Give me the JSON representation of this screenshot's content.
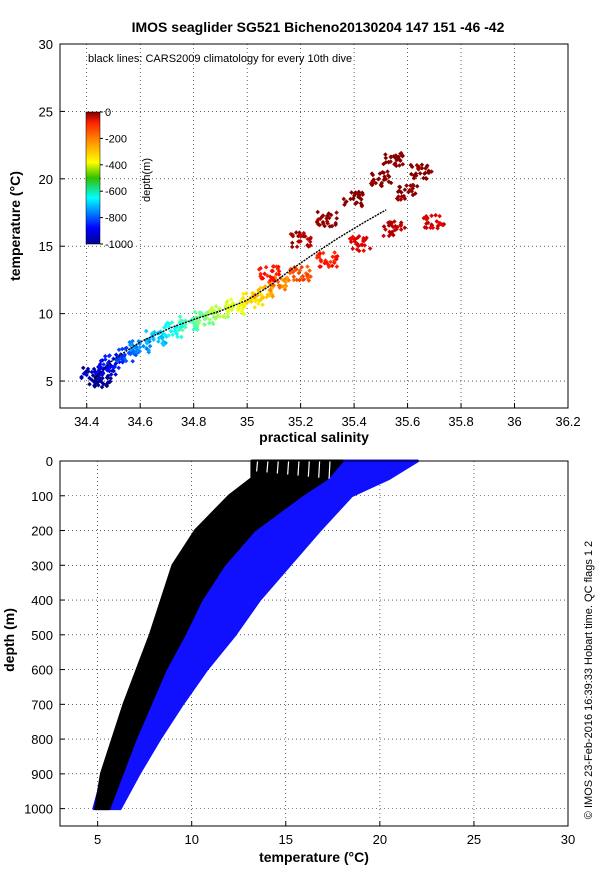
{
  "chart_data": [
    {
      "type": "scatter",
      "title": "IMOS seaglider SG521 Bicheno20130204 147  151  -46  -42",
      "annotation": "black lines: CARS2009 climatology for every 10th dive",
      "xlabel": "practical salinity",
      "ylabel": "temperature (°C)",
      "xlim": [
        34.3,
        36.2
      ],
      "ylim": [
        3,
        30
      ],
      "xticks": [
        "34.4",
        "34.6",
        "34.8",
        "35",
        "35.2",
        "35.4",
        "35.6",
        "35.8",
        "36",
        "36.2"
      ],
      "yticks": [
        "5",
        "10",
        "15",
        "20",
        "25",
        "30"
      ],
      "grid": true,
      "colorbar": {
        "label": "depth(m)",
        "ticks": [
          "0",
          "-200",
          "-400",
          "-600",
          "-800",
          "-1000"
        ],
        "range": [
          -1000,
          0
        ],
        "colormap": "jet"
      },
      "series": [
        {
          "kind": "glider observations (colored by depth)",
          "points": [
            [
              34.45,
              5.0,
              -990
            ],
            [
              34.42,
              5.5,
              -950
            ],
            [
              34.47,
              6.0,
              -900
            ],
            [
              34.5,
              6.5,
              -850
            ],
            [
              34.55,
              7.0,
              -800
            ],
            [
              34.6,
              7.6,
              -740
            ],
            [
              34.66,
              8.2,
              -680
            ],
            [
              34.72,
              8.8,
              -620
            ],
            [
              34.78,
              9.3,
              -560
            ],
            [
              34.84,
              9.7,
              -500
            ],
            [
              34.9,
              10.1,
              -450
            ],
            [
              34.96,
              10.5,
              -400
            ],
            [
              35.02,
              11.0,
              -350
            ],
            [
              35.06,
              11.5,
              -300
            ],
            [
              35.12,
              12.2,
              -250
            ],
            [
              35.2,
              13.0,
              -200
            ],
            [
              35.3,
              14.0,
              -150
            ],
            [
              35.42,
              15.2,
              -100
            ],
            [
              35.55,
              16.3,
              -60
            ],
            [
              35.7,
              16.8,
              -80
            ],
            [
              35.08,
              13.0,
              -140
            ],
            [
              35.2,
              15.5,
              -40
            ],
            [
              35.3,
              17.0,
              -20
            ],
            [
              35.4,
              18.5,
              -10
            ],
            [
              35.5,
              20.0,
              -5
            ],
            [
              35.55,
              21.5,
              -2
            ],
            [
              35.65,
              20.5,
              -5
            ],
            [
              35.6,
              19.0,
              -15
            ]
          ]
        },
        {
          "kind": "CARS2009 climatology",
          "color": "#000000",
          "points": [
            [
              34.42,
              5.0
            ],
            [
              34.5,
              6.6
            ],
            [
              34.6,
              7.9
            ],
            [
              34.72,
              9.0
            ],
            [
              34.82,
              9.7
            ],
            [
              34.9,
              10.2
            ],
            [
              35.0,
              11.0
            ],
            [
              35.08,
              12.0
            ],
            [
              35.16,
              13.2
            ],
            [
              35.24,
              14.3
            ],
            [
              35.34,
              15.6
            ],
            [
              35.44,
              16.8
            ],
            [
              35.52,
              17.7
            ]
          ]
        }
      ]
    },
    {
      "type": "scatter",
      "title": "",
      "xlabel": "temperature (°C)",
      "ylabel": "depth (m)",
      "xlim": [
        3,
        30
      ],
      "ylim": [
        1050,
        0
      ],
      "xticks": [
        "5",
        "10",
        "15",
        "20",
        "25",
        "30"
      ],
      "yticks": [
        "0",
        "100",
        "200",
        "300",
        "400",
        "500",
        "600",
        "700",
        "800",
        "900",
        "1000"
      ],
      "grid": true,
      "side_text": "© IMOS 23-Feb-2016 16:39:33 Hobart time. QC flags 1  2",
      "series": [
        {
          "kind": "observed profiles",
          "color": "#1010ff",
          "envelope_depth": [
            0,
            50,
            100,
            200,
            300,
            400,
            500,
            600,
            700,
            800,
            900,
            1000
          ],
          "temp_min": [
            16.0,
            15.0,
            13.5,
            11.5,
            10.5,
            9.6,
            8.8,
            7.9,
            7.1,
            6.2,
            5.3,
            4.8
          ],
          "temp_max": [
            22.0,
            20.5,
            18.5,
            16.8,
            15.2,
            13.6,
            12.3,
            10.8,
            9.5,
            8.3,
            7.2,
            6.2
          ]
        },
        {
          "kind": "CARS2009 climatology",
          "color": "#000000",
          "envelope_depth": [
            0,
            50,
            100,
            200,
            300,
            400,
            500,
            600,
            700,
            800,
            900,
            1000
          ],
          "temp_min": [
            13.2,
            13.2,
            12.0,
            10.2,
            9.0,
            8.4,
            7.8,
            7.1,
            6.4,
            5.8,
            5.2,
            4.9
          ],
          "temp_max": [
            18.0,
            17.2,
            15.8,
            13.3,
            11.7,
            10.5,
            9.6,
            8.6,
            7.8,
            7.0,
            6.3,
            5.6
          ]
        }
      ]
    }
  ]
}
